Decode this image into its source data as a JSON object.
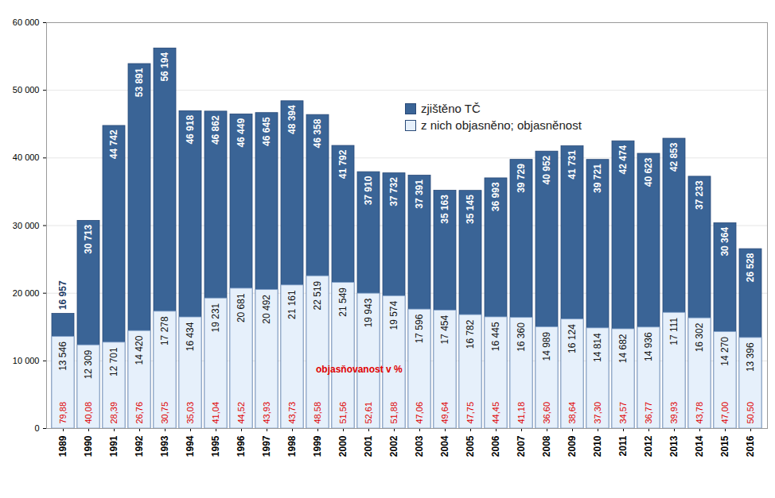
{
  "chart_data": {
    "type": "bar",
    "stacked": false,
    "data_labels": true,
    "grid": true,
    "legend": "top-right",
    "categories": [
      "1989",
      "1990",
      "1991",
      "1992",
      "1993",
      "1994",
      "1995",
      "1996",
      "1997",
      "1998",
      "1999",
      "2000",
      "2001",
      "2002",
      "2003",
      "2004",
      "2005",
      "2006",
      "2007",
      "2008",
      "2009",
      "2010",
      "2011",
      "2012",
      "2013",
      "2014",
      "2015",
      "2016"
    ],
    "series": [
      {
        "name": "zjištěno TČ",
        "color": "#3a6496",
        "values": [
          16957,
          30713,
          44742,
          53891,
          56194,
          46918,
          46862,
          46449,
          46645,
          48394,
          46358,
          41792,
          37910,
          37732,
          37391,
          35163,
          35145,
          36993,
          39729,
          40952,
          41731,
          39721,
          42474,
          40623,
          42853,
          37233,
          30364,
          26528
        ],
        "value_labels": [
          "16 957",
          "30 713",
          "44 742",
          "53 891",
          "56 194",
          "46 918",
          "46 862",
          "46 449",
          "46 645",
          "48 394",
          "46 358",
          "41 792",
          "37 910",
          "37 732",
          "37 391",
          "35 163",
          "35 145",
          "36 993",
          "39 729",
          "40 952",
          "41 731",
          "39 721",
          "42 474",
          "40 623",
          "42 853",
          "37 233",
          "30 364",
          "26 528"
        ]
      },
      {
        "name": "z nich objasněno; objasněnost",
        "color": "#e6f0fb",
        "values": [
          13546,
          12309,
          12701,
          14420,
          17278,
          16434,
          19231,
          20681,
          20492,
          21161,
          22519,
          21549,
          19943,
          19574,
          17596,
          17454,
          16782,
          16445,
          16360,
          14989,
          16124,
          14814,
          14682,
          14936,
          17111,
          16302,
          14270,
          13396
        ],
        "value_labels": [
          "13 546",
          "12 309",
          "12 701",
          "14 420",
          "17 278",
          "16 434",
          "19 231",
          "20 681",
          "20 492",
          "21 161",
          "22 519",
          "21 549",
          "19 943",
          "19 574",
          "17 596",
          "17 454",
          "16 782",
          "16 445",
          "16 360",
          "14 989",
          "16 124",
          "14 814",
          "14 682",
          "14 936",
          "17 111",
          "16 302",
          "14 270",
          "13 396"
        ],
        "rates": [
          79.88,
          40.08,
          28.39,
          26.76,
          30.75,
          35.03,
          41.04,
          44.52,
          43.93,
          43.73,
          48.58,
          51.56,
          52.61,
          51.88,
          47.06,
          49.64,
          47.75,
          44.45,
          41.18,
          36.6,
          38.64,
          37.3,
          34.57,
          36.77,
          39.93,
          43.78,
          47.0,
          50.5
        ],
        "rate_labels": [
          "79,88",
          "40,08",
          "28,39",
          "26,76",
          "30,75",
          "35,03",
          "41,04",
          "44,52",
          "43,93",
          "43,73",
          "48,58",
          "51,56",
          "52,61",
          "51,88",
          "47,06",
          "49,64",
          "47,75",
          "44,45",
          "41,18",
          "36,60",
          "38,64",
          "37,30",
          "34,57",
          "36,77",
          "39,93",
          "43,78",
          "47,00",
          "50,50"
        ]
      }
    ],
    "annotations": [
      {
        "text": "objasňovanost v %",
        "color": "#e00000"
      }
    ],
    "ylim": [
      0,
      60000
    ],
    "yticks": [
      0,
      {
        "value": 10000,
        "label": "10 000"
      },
      {
        "value": 20000,
        "label": "20 000"
      },
      {
        "value": 30000,
        "label": "30 000"
      },
      {
        "value": 40000,
        "label": "40 000"
      },
      {
        "value": 50000,
        "label": "50 000"
      },
      {
        "value": 60000,
        "label": "60 000"
      }
    ]
  }
}
